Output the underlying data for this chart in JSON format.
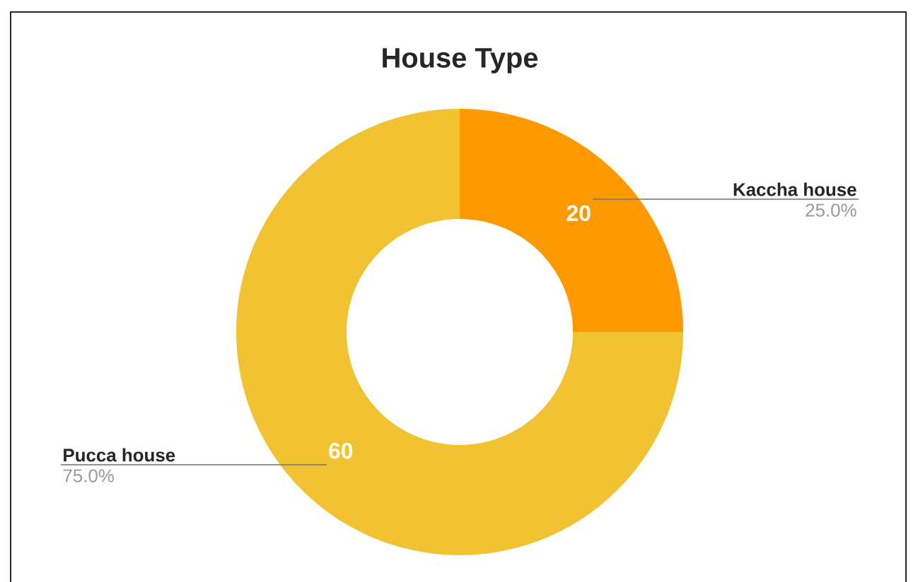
{
  "chart_data": {
    "type": "donut",
    "title": "House Type",
    "categories": [
      "Kaccha house",
      "Pucca house"
    ],
    "values": [
      20,
      60
    ],
    "colors": [
      "#ff9900",
      "#f1c232"
    ],
    "data_labels": true,
    "annotations": [
      "25.0%",
      "75.0%"
    ]
  }
}
